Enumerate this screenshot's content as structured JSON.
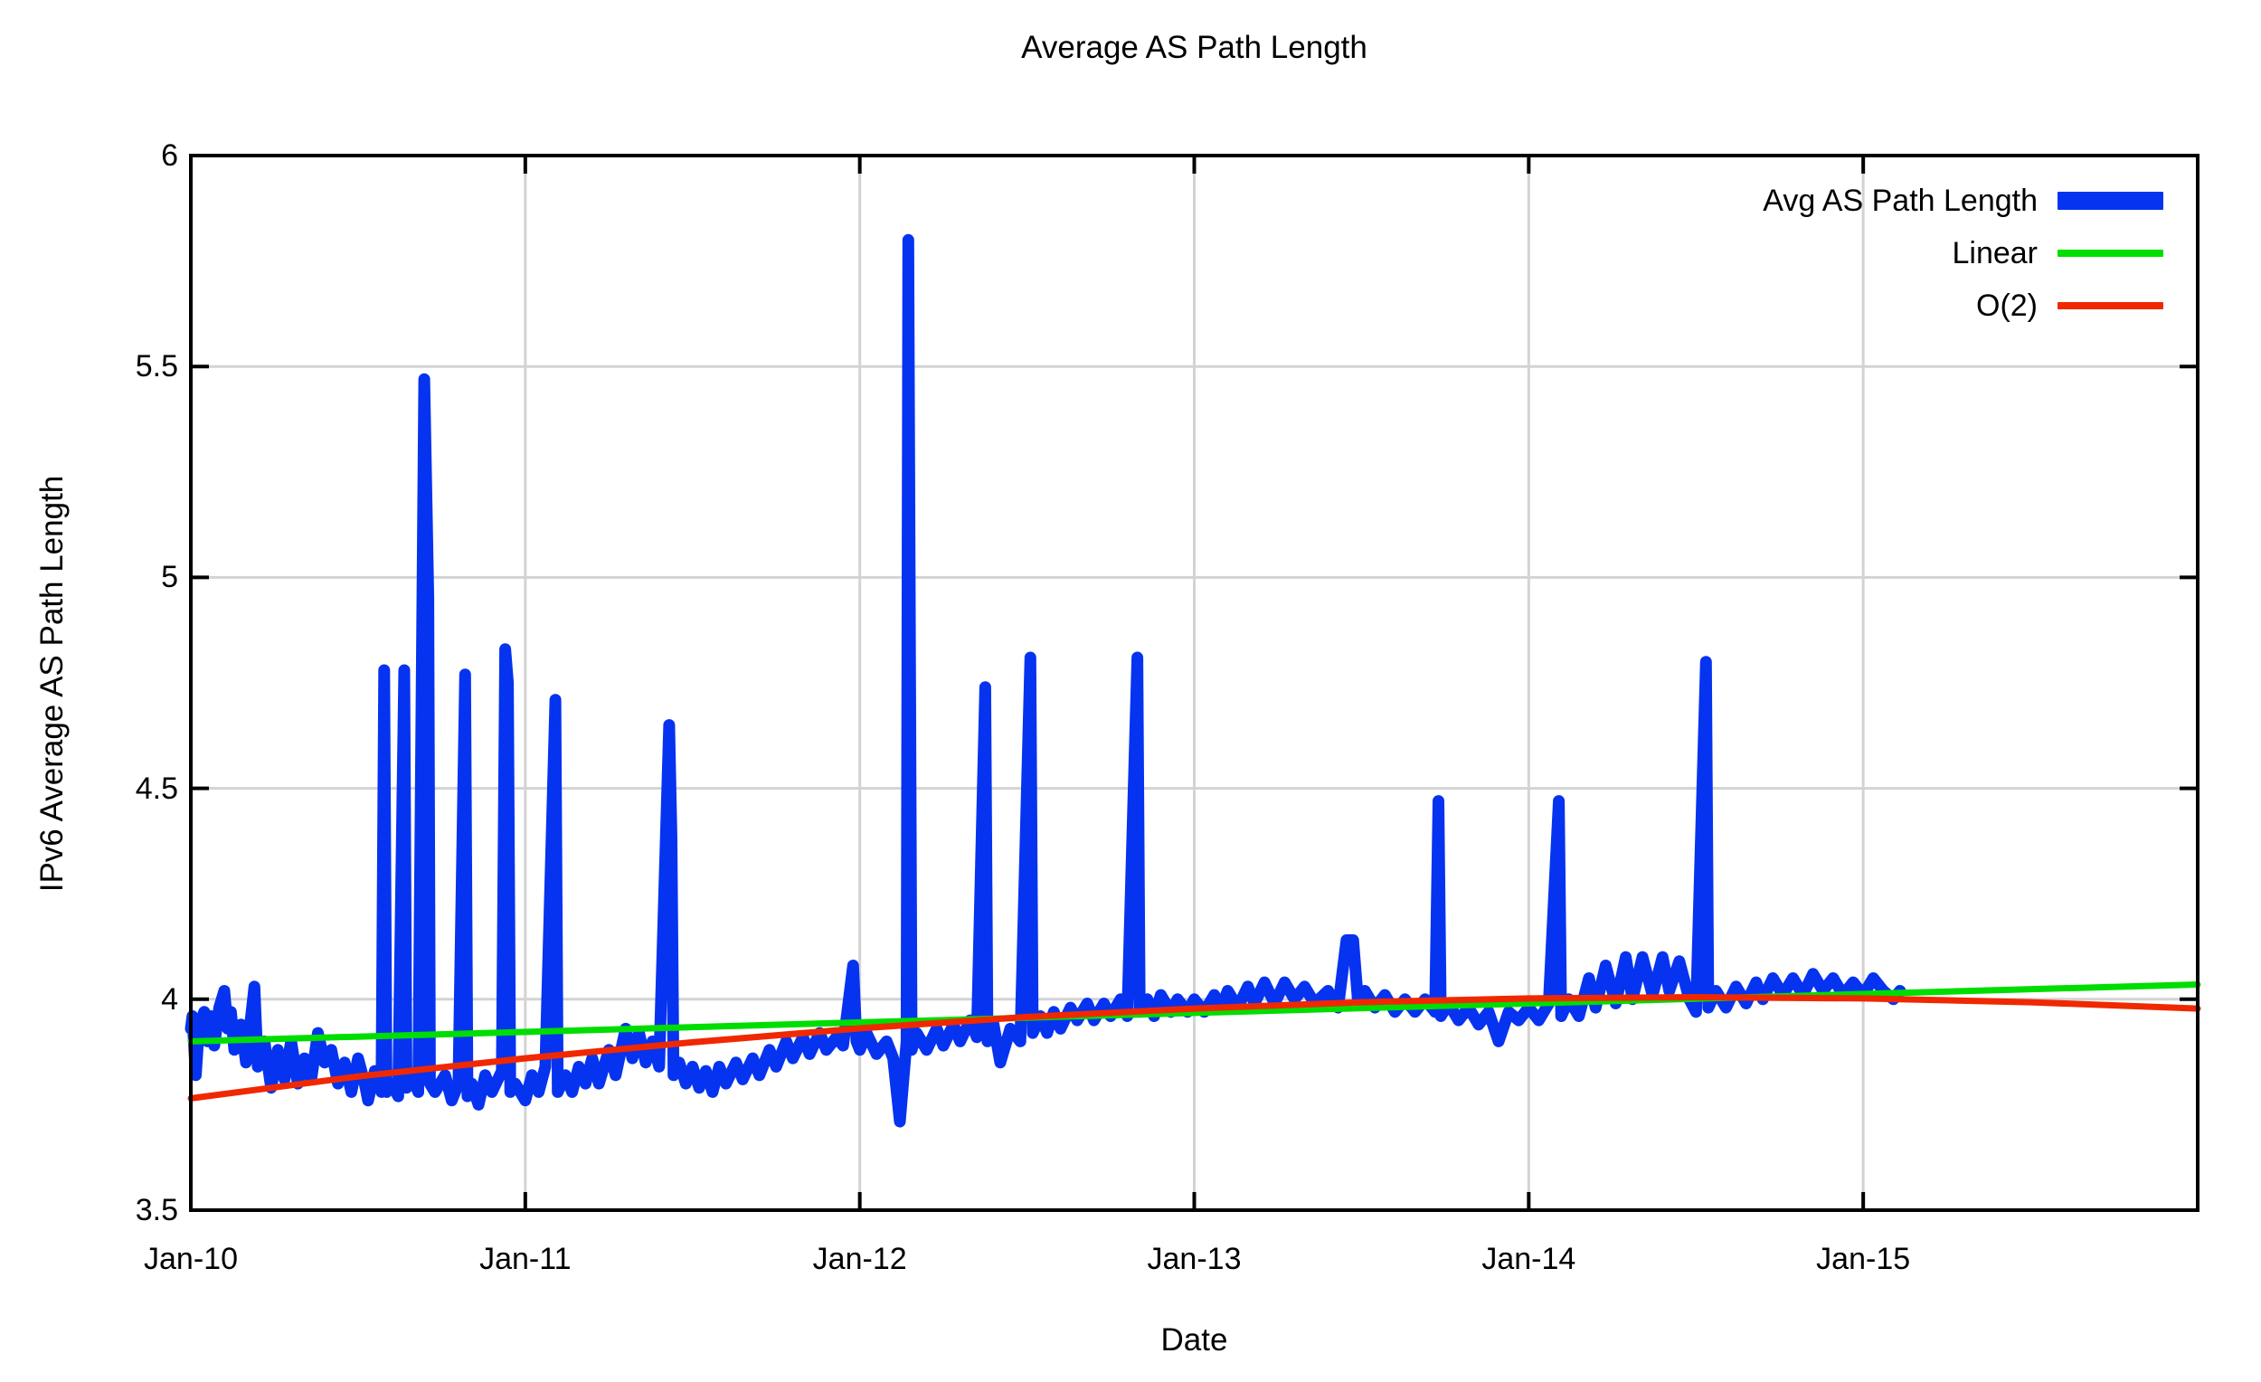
{
  "header": {
    "title": "Average AS Path Length"
  },
  "legend": {
    "entries": [
      {
        "label": "Avg AS Path Length",
        "color_key": "blue",
        "swatch_height": 20
      },
      {
        "label": "Linear",
        "color_key": "green",
        "swatch_height": 8
      },
      {
        "label": "O(2)",
        "color_key": "red",
        "swatch_height": 8
      }
    ]
  },
  "colors": {
    "blue": "#0633f0",
    "green": "#00dd00",
    "red": "#f02800",
    "grid": "#d3d3d3",
    "border": "#000000",
    "background": "#ffffff"
  },
  "axes": {
    "x_ticks": [
      {
        "label": "Jan-10",
        "t": 2010
      },
      {
        "label": "Jan-11",
        "t": 2011
      },
      {
        "label": "Jan-12",
        "t": 2012
      },
      {
        "label": "Jan-13",
        "t": 2013
      },
      {
        "label": "Jan-14",
        "t": 2014
      },
      {
        "label": "Jan-15",
        "t": 2015
      }
    ],
    "y_ticks": [
      {
        "label": "3.5",
        "v": 3.5
      },
      {
        "label": "4",
        "v": 4.0
      },
      {
        "label": "4.5",
        "v": 4.5
      },
      {
        "label": "5",
        "v": 5.0
      },
      {
        "label": "5.5",
        "v": 5.5
      },
      {
        "label": "6",
        "v": 6.0
      }
    ]
  },
  "chart_data": {
    "type": "line",
    "title": "Average AS Path Length",
    "xlabel": "Date",
    "ylabel": "IPv6 Average AS Path Length",
    "xlim": [
      2010.0,
      2016.0
    ],
    "ylim": [
      3.5,
      6.0
    ],
    "grid": true,
    "legend_position": "top-right",
    "x_unit": "decimal-year",
    "series": [
      {
        "name": "Avg AS Path Length",
        "color_key": "blue",
        "stroke_width": 13,
        "points": [
          [
            2010.0,
            3.93
          ],
          [
            2010.005,
            3.96
          ],
          [
            2010.015,
            3.82
          ],
          [
            2010.025,
            3.94
          ],
          [
            2010.04,
            3.97
          ],
          [
            2010.05,
            3.9
          ],
          [
            2010.06,
            3.96
          ],
          [
            2010.07,
            3.89
          ],
          [
            2010.085,
            3.98
          ],
          [
            2010.1,
            4.02
          ],
          [
            2010.11,
            3.93
          ],
          [
            2010.12,
            3.97
          ],
          [
            2010.13,
            3.88
          ],
          [
            2010.15,
            3.94
          ],
          [
            2010.165,
            3.85
          ],
          [
            2010.19,
            4.03
          ],
          [
            2010.2,
            3.84
          ],
          [
            2010.22,
            3.9
          ],
          [
            2010.24,
            3.79
          ],
          [
            2010.26,
            3.88
          ],
          [
            2010.28,
            3.81
          ],
          [
            2010.3,
            3.9
          ],
          [
            2010.32,
            3.8
          ],
          [
            2010.34,
            3.86
          ],
          [
            2010.36,
            3.81
          ],
          [
            2010.38,
            3.92
          ],
          [
            2010.4,
            3.85
          ],
          [
            2010.42,
            3.88
          ],
          [
            2010.44,
            3.8
          ],
          [
            2010.46,
            3.85
          ],
          [
            2010.48,
            3.78
          ],
          [
            2010.5,
            3.86
          ],
          [
            2010.52,
            3.8
          ],
          [
            2010.53,
            3.76
          ],
          [
            2010.55,
            3.83
          ],
          [
            2010.57,
            3.78
          ],
          [
            2010.578,
            4.78
          ],
          [
            2010.585,
            3.78
          ],
          [
            2010.6,
            3.8
          ],
          [
            2010.62,
            3.77
          ],
          [
            2010.638,
            4.78
          ],
          [
            2010.645,
            3.79
          ],
          [
            2010.66,
            3.82
          ],
          [
            2010.68,
            3.78
          ],
          [
            2010.698,
            5.47
          ],
          [
            2010.71,
            4.95
          ],
          [
            2010.715,
            3.8
          ],
          [
            2010.73,
            3.78
          ],
          [
            2010.76,
            3.82
          ],
          [
            2010.78,
            3.76
          ],
          [
            2010.8,
            3.8
          ],
          [
            2010.82,
            4.77
          ],
          [
            2010.827,
            3.77
          ],
          [
            2010.84,
            3.8
          ],
          [
            2010.86,
            3.75
          ],
          [
            2010.88,
            3.82
          ],
          [
            2010.9,
            3.78
          ],
          [
            2010.93,
            3.83
          ],
          [
            2010.94,
            4.83
          ],
          [
            2010.948,
            4.75
          ],
          [
            2010.955,
            3.78
          ],
          [
            2010.97,
            3.8
          ],
          [
            2011.0,
            3.76
          ],
          [
            2011.02,
            3.82
          ],
          [
            2011.04,
            3.78
          ],
          [
            2011.06,
            3.84
          ],
          [
            2011.09,
            4.71
          ],
          [
            2011.097,
            3.78
          ],
          [
            2011.12,
            3.82
          ],
          [
            2011.14,
            3.78
          ],
          [
            2011.16,
            3.84
          ],
          [
            2011.18,
            3.8
          ],
          [
            2011.2,
            3.86
          ],
          [
            2011.22,
            3.8
          ],
          [
            2011.25,
            3.88
          ],
          [
            2011.27,
            3.82
          ],
          [
            2011.3,
            3.93
          ],
          [
            2011.32,
            3.86
          ],
          [
            2011.34,
            3.92
          ],
          [
            2011.36,
            3.85
          ],
          [
            2011.38,
            3.9
          ],
          [
            2011.4,
            3.84
          ],
          [
            2011.43,
            4.65
          ],
          [
            2011.437,
            4.38
          ],
          [
            2011.443,
            3.82
          ],
          [
            2011.46,
            3.85
          ],
          [
            2011.48,
            3.8
          ],
          [
            2011.5,
            3.84
          ],
          [
            2011.52,
            3.79
          ],
          [
            2011.54,
            3.83
          ],
          [
            2011.56,
            3.78
          ],
          [
            2011.58,
            3.84
          ],
          [
            2011.6,
            3.8
          ],
          [
            2011.63,
            3.85
          ],
          [
            2011.65,
            3.81
          ],
          [
            2011.68,
            3.86
          ],
          [
            2011.7,
            3.82
          ],
          [
            2011.73,
            3.88
          ],
          [
            2011.75,
            3.84
          ],
          [
            2011.78,
            3.9
          ],
          [
            2011.8,
            3.86
          ],
          [
            2011.83,
            3.91
          ],
          [
            2011.85,
            3.87
          ],
          [
            2011.88,
            3.92
          ],
          [
            2011.9,
            3.88
          ],
          [
            2011.93,
            3.91
          ],
          [
            2011.95,
            3.89
          ],
          [
            2011.98,
            4.08
          ],
          [
            2011.99,
            3.9
          ],
          [
            2012.0,
            3.88
          ],
          [
            2012.02,
            3.92
          ],
          [
            2012.05,
            3.87
          ],
          [
            2012.08,
            3.9
          ],
          [
            2012.1,
            3.86
          ],
          [
            2012.12,
            3.71
          ],
          [
            2012.14,
            3.9
          ],
          [
            2012.145,
            5.8
          ],
          [
            2012.155,
            3.88
          ],
          [
            2012.17,
            3.92
          ],
          [
            2012.2,
            3.88
          ],
          [
            2012.23,
            3.93
          ],
          [
            2012.25,
            3.89
          ],
          [
            2012.28,
            3.94
          ],
          [
            2012.3,
            3.9
          ],
          [
            2012.33,
            3.95
          ],
          [
            2012.35,
            3.91
          ],
          [
            2012.375,
            4.74
          ],
          [
            2012.382,
            3.9
          ],
          [
            2012.4,
            3.94
          ],
          [
            2012.42,
            3.85
          ],
          [
            2012.45,
            3.93
          ],
          [
            2012.48,
            3.9
          ],
          [
            2012.51,
            4.81
          ],
          [
            2012.517,
            3.92
          ],
          [
            2012.54,
            3.96
          ],
          [
            2012.56,
            3.92
          ],
          [
            2012.58,
            3.97
          ],
          [
            2012.6,
            3.93
          ],
          [
            2012.63,
            3.98
          ],
          [
            2012.65,
            3.95
          ],
          [
            2012.68,
            3.99
          ],
          [
            2012.7,
            3.95
          ],
          [
            2012.73,
            3.99
          ],
          [
            2012.75,
            3.96
          ],
          [
            2012.78,
            4.0
          ],
          [
            2012.8,
            3.96
          ],
          [
            2012.83,
            4.81
          ],
          [
            2012.837,
            3.97
          ],
          [
            2012.86,
            4.0
          ],
          [
            2012.88,
            3.96
          ],
          [
            2012.9,
            4.01
          ],
          [
            2012.93,
            3.97
          ],
          [
            2012.95,
            4.0
          ],
          [
            2012.98,
            3.97
          ],
          [
            2013.0,
            4.0
          ],
          [
            2013.03,
            3.97
          ],
          [
            2013.06,
            4.01
          ],
          [
            2013.08,
            3.98
          ],
          [
            2013.1,
            4.02
          ],
          [
            2013.13,
            3.98
          ],
          [
            2013.16,
            4.03
          ],
          [
            2013.18,
            3.99
          ],
          [
            2013.21,
            4.04
          ],
          [
            2013.24,
            3.99
          ],
          [
            2013.27,
            4.04
          ],
          [
            2013.3,
            4.0
          ],
          [
            2013.33,
            4.03
          ],
          [
            2013.36,
            3.99
          ],
          [
            2013.4,
            4.02
          ],
          [
            2013.43,
            3.98
          ],
          [
            2013.455,
            4.14
          ],
          [
            2013.475,
            4.14
          ],
          [
            2013.49,
            3.99
          ],
          [
            2013.51,
            4.02
          ],
          [
            2013.54,
            3.98
          ],
          [
            2013.57,
            4.01
          ],
          [
            2013.6,
            3.97
          ],
          [
            2013.63,
            4.0
          ],
          [
            2013.66,
            3.97
          ],
          [
            2013.69,
            4.0
          ],
          [
            2013.72,
            3.97
          ],
          [
            2013.73,
            4.47
          ],
          [
            2013.737,
            3.96
          ],
          [
            2013.76,
            3.99
          ],
          [
            2013.79,
            3.95
          ],
          [
            2013.82,
            3.98
          ],
          [
            2013.85,
            3.94
          ],
          [
            2013.88,
            3.97
          ],
          [
            2013.91,
            3.9
          ],
          [
            2013.94,
            3.97
          ],
          [
            2013.97,
            3.95
          ],
          [
            2014.0,
            3.98
          ],
          [
            2014.03,
            3.95
          ],
          [
            2014.06,
            3.99
          ],
          [
            2014.09,
            4.47
          ],
          [
            2014.097,
            3.96
          ],
          [
            2014.12,
            4.0
          ],
          [
            2014.15,
            3.96
          ],
          [
            2014.18,
            4.05
          ],
          [
            2014.2,
            3.98
          ],
          [
            2014.23,
            4.08
          ],
          [
            2014.26,
            3.99
          ],
          [
            2014.29,
            4.1
          ],
          [
            2014.31,
            4.0
          ],
          [
            2014.34,
            4.1
          ],
          [
            2014.37,
            4.01
          ],
          [
            2014.4,
            4.1
          ],
          [
            2014.42,
            4.02
          ],
          [
            2014.45,
            4.09
          ],
          [
            2014.48,
            4.0
          ],
          [
            2014.5,
            3.97
          ],
          [
            2014.53,
            4.8
          ],
          [
            2014.537,
            3.98
          ],
          [
            2014.56,
            4.02
          ],
          [
            2014.59,
            3.98
          ],
          [
            2014.62,
            4.03
          ],
          [
            2014.65,
            3.99
          ],
          [
            2014.68,
            4.04
          ],
          [
            2014.7,
            4.0
          ],
          [
            2014.73,
            4.05
          ],
          [
            2014.76,
            4.01
          ],
          [
            2014.79,
            4.05
          ],
          [
            2014.82,
            4.01
          ],
          [
            2014.85,
            4.06
          ],
          [
            2014.88,
            4.02
          ],
          [
            2014.91,
            4.05
          ],
          [
            2014.94,
            4.01
          ],
          [
            2014.97,
            4.04
          ],
          [
            2015.0,
            4.01
          ],
          [
            2015.03,
            4.05
          ],
          [
            2015.06,
            4.02
          ],
          [
            2015.09,
            4.0
          ],
          [
            2015.11,
            4.02
          ]
        ]
      },
      {
        "name": "Linear",
        "color_key": "green",
        "stroke_width": 7,
        "points": [
          [
            2010.0,
            3.9
          ],
          [
            2016.0,
            4.035
          ]
        ]
      },
      {
        "name": "O(2)",
        "color_key": "red",
        "stroke_width": 7,
        "points": [
          [
            2010.0,
            3.765
          ],
          [
            2010.5,
            3.817
          ],
          [
            2011.0,
            3.86
          ],
          [
            2011.5,
            3.898
          ],
          [
            2012.0,
            3.931
          ],
          [
            2012.5,
            3.958
          ],
          [
            2013.0,
            3.978
          ],
          [
            2013.5,
            3.993
          ],
          [
            2014.0,
            4.002
          ],
          [
            2014.5,
            4.005
          ],
          [
            2015.0,
            4.002
          ],
          [
            2015.5,
            3.993
          ],
          [
            2016.0,
            3.978
          ]
        ]
      }
    ]
  }
}
